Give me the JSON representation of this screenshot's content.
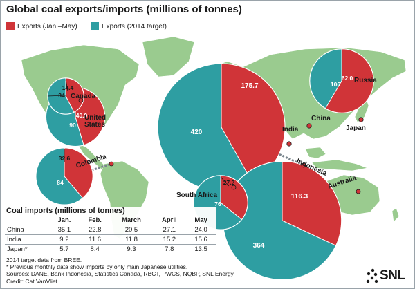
{
  "title": "Global coal exports/imports (millions of tonnes)",
  "legend": {
    "items": [
      {
        "label": "Exports (Jan.–May)",
        "color": "#d03438"
      },
      {
        "label": "Exports (2014 target)",
        "color": "#2e9ea2"
      }
    ]
  },
  "colors": {
    "exports_jan_may": "#d03438",
    "exports_target": "#2e9ea2",
    "land": "#9acb8f",
    "ocean": "#ffffff",
    "route": "#7a868e"
  },
  "chart_data": [
    {
      "type": "pie",
      "title": "",
      "series": [
        {
          "name": "Exports (Jan.–May)",
          "values": [
            175.7,
            116.3,
            62.0,
            40.9,
            32.6,
            27.2,
            14.4
          ]
        },
        {
          "name": "Exports (2014 target)",
          "values": [
            420,
            364,
            106,
            90,
            84,
            76,
            34
          ]
        }
      ],
      "categories": [
        "Indonesia",
        "Australia",
        "Russia",
        "United States",
        "Colombia",
        "South Africa",
        "Canada"
      ],
      "pies": [
        {
          "country": "Indonesia",
          "jan_may": 175.7,
          "target": 420,
          "jan_may_label": "175.7",
          "target_label": "420"
        },
        {
          "country": "Australia",
          "jan_may": 116.3,
          "target": 364,
          "jan_may_label": "116.3",
          "target_label": "364"
        },
        {
          "country": "Russia",
          "jan_may": 62.0,
          "target": 106,
          "jan_may_label": "62.0",
          "target_label": "106"
        },
        {
          "country": "United States",
          "jan_may": 40.9,
          "target": 90,
          "jan_may_label": "40.9",
          "target_label": "90"
        },
        {
          "country": "Colombia",
          "jan_may": 32.6,
          "target": 84,
          "jan_may_label": "32.6",
          "target_label": "84"
        },
        {
          "country": "South Africa",
          "jan_may": 27.2,
          "target": 76,
          "jan_may_label": "27.2",
          "target_label": "76"
        },
        {
          "country": "Canada",
          "jan_may": 14.4,
          "target": 34,
          "jan_may_label": "14.4",
          "target_label": "34"
        }
      ],
      "importers": [
        "China",
        "India",
        "Japan"
      ]
    },
    {
      "type": "table",
      "title": "Coal imports (millions of tonnes)",
      "columns": [
        "",
        "Jan.",
        "Feb.",
        "March",
        "April",
        "May"
      ],
      "rows": [
        {
          "name": "China",
          "values": [
            35.1,
            22.8,
            20.5,
            27.1,
            24.0
          ],
          "labels": [
            "35.1",
            "22.8",
            "20.5",
            "27.1",
            "24.0"
          ]
        },
        {
          "name": "India",
          "values": [
            9.2,
            11.6,
            11.8,
            15.2,
            15.6
          ],
          "labels": [
            "9.2",
            "11.6",
            "11.8",
            "15.2",
            "15.6"
          ]
        },
        {
          "name": "Japan*",
          "values": [
            5.7,
            8.4,
            9.3,
            7.8,
            13.5
          ],
          "labels": [
            "5.7",
            "8.4",
            "9.3",
            "7.8",
            "13.5"
          ]
        }
      ]
    }
  ],
  "notes": [
    "2014 target data from BREE.",
    "* Previous monthly data show imports by only main Japanese utilities.",
    "Sources: DANE, Bank Indonesia, Statistics Canada, RBCT, PWCS, NQBP, SNL Energy",
    "Credit: Cat VanVliet"
  ],
  "logo": {
    "text": "SNL"
  }
}
